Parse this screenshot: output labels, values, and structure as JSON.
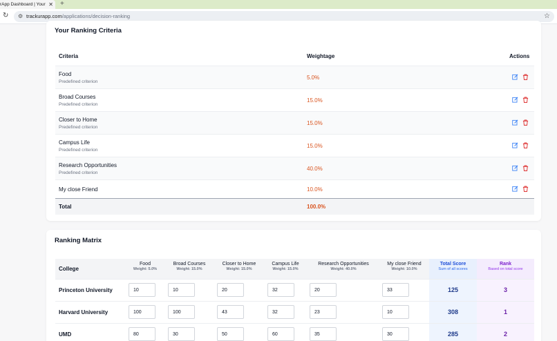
{
  "browser": {
    "tab_title": "rApp Dashboard | Your C",
    "tab_close": "✕",
    "new_tab": "+",
    "url_host": "trackurapp.com",
    "url_path": "/applications/decision-ranking"
  },
  "criteria_section": {
    "title": "Your Ranking Criteria",
    "headers": {
      "criteria": "Criteria",
      "weightage": "Weightage",
      "actions": "Actions"
    },
    "rows": [
      {
        "name": "Food",
        "sub": "Predefined criterion",
        "weight": "5.0%"
      },
      {
        "name": "Broad Courses",
        "sub": "Predefined criterion",
        "weight": "15.0%"
      },
      {
        "name": "Closer to Home",
        "sub": "Predefined criterion",
        "weight": "15.0%"
      },
      {
        "name": "Campus Life",
        "sub": "Predefined criterion",
        "weight": "15.0%"
      },
      {
        "name": "Research Opportunities",
        "sub": "Predefined criterion",
        "weight": "40.0%"
      },
      {
        "name": "My close Friend",
        "sub": "",
        "weight": "10.0%"
      }
    ],
    "total_label": "Total",
    "total_value": "100.0%"
  },
  "matrix_section": {
    "title": "Ranking Matrix",
    "college_header": "College",
    "columns": [
      {
        "name": "Food",
        "weight": "Weight: 5.0%"
      },
      {
        "name": "Broad Courses",
        "weight": "Weight: 15.0%"
      },
      {
        "name": "Closer to Home",
        "weight": "Weight: 15.0%"
      },
      {
        "name": "Campus Life",
        "weight": "Weight: 15.0%"
      },
      {
        "name": "Research Opportunities",
        "weight": "Weight: 40.0%"
      },
      {
        "name": "My close Friend",
        "weight": "Weight: 10.0%"
      }
    ],
    "total_header": {
      "name": "Total Score",
      "sub": "Sum of all scores"
    },
    "rank_header": {
      "name": "Rank",
      "sub": "Based on total score"
    },
    "rows": [
      {
        "college": "Princeton University",
        "scores": [
          "10",
          "10",
          "20",
          "32",
          "20",
          "33"
        ],
        "total": "125",
        "rank": "3"
      },
      {
        "college": "Harvard University",
        "scores": [
          "100",
          "100",
          "43",
          "32",
          "23",
          "10"
        ],
        "total": "308",
        "rank": "1"
      },
      {
        "college": "UMD",
        "scores": [
          "80",
          "30",
          "50",
          "60",
          "35",
          "30"
        ],
        "total": "285",
        "rank": "2"
      }
    ]
  },
  "colors": {
    "weight_accent": "#d9531e",
    "edit_icon": "#3b82f6",
    "delete_icon": "#dc2626",
    "total_score": "#1e3a8a",
    "rank": "#6b21a8"
  }
}
